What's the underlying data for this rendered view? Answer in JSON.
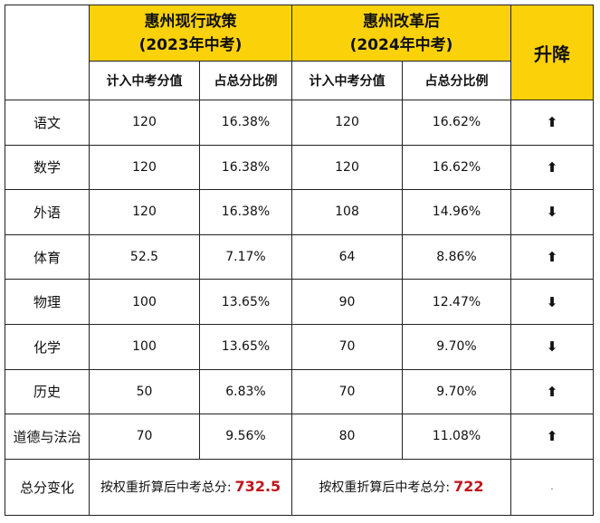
{
  "header": {
    "col_a_title": "惠州现行政策",
    "col_a_sub": "(2023年中考)",
    "col_b_title": "惠州改革后",
    "col_b_sub": "(2024年中考)",
    "change_title": "升降",
    "score_label": "计入中考分值",
    "ratio_label": "占总分比例"
  },
  "rows": [
    {
      "subject": "语文",
      "score_2023": "120",
      "ratio_2023": "16.38%",
      "score_2024": "120",
      "ratio_2024": "16.62%",
      "change": "⬆"
    },
    {
      "subject": "数学",
      "score_2023": "120",
      "ratio_2023": "16.38%",
      "score_2024": "120",
      "ratio_2024": "16.62%",
      "change": "⬆"
    },
    {
      "subject": "外语",
      "score_2023": "120",
      "ratio_2023": "16.38%",
      "score_2024": "108",
      "ratio_2024": "14.96%",
      "change": "⬇"
    },
    {
      "subject": "体育",
      "score_2023": "52.5",
      "ratio_2023": "7.17%",
      "score_2024": "64",
      "ratio_2024": "8.86%",
      "change": "⬆"
    },
    {
      "subject": "物理",
      "score_2023": "100",
      "ratio_2023": "13.65%",
      "score_2024": "90",
      "ratio_2024": "12.47%",
      "change": "⬇"
    },
    {
      "subject": "化学",
      "score_2023": "100",
      "ratio_2023": "13.65%",
      "score_2024": "70",
      "ratio_2024": "9.70%",
      "change": "⬇"
    },
    {
      "subject": "历史",
      "score_2023": "50",
      "ratio_2023": "6.83%",
      "score_2024": "70",
      "ratio_2024": "9.70%",
      "change": "⬆"
    },
    {
      "subject": "道德与法治",
      "score_2023": "70",
      "ratio_2023": "9.56%",
      "score_2024": "80",
      "ratio_2024": "11.08%",
      "change": "⬆"
    }
  ],
  "summary": {
    "label": "总分变化",
    "text_2023": "按权重折算后中考总分:",
    "value_2023": "732.5",
    "text_2024": "按权重折算后中考总分:",
    "value_2024": "722",
    "change_mark": "·"
  },
  "colors": {
    "header_yellow": "#fbd20a",
    "total_red": "#c0141c",
    "border": "#222222"
  }
}
